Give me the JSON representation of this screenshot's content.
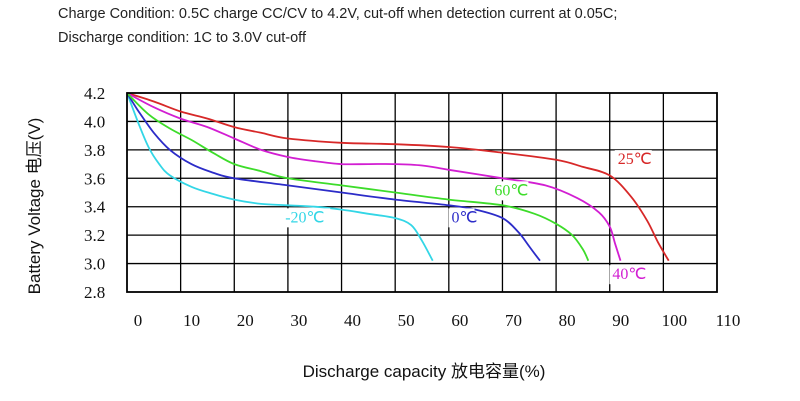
{
  "header": {
    "line1": "Charge Condition: 0.5C charge CC/CV to 4.2V, cut-off when detection current at 0.05C;",
    "line2": "Discharge condition: 1C to 3.0V cut-off"
  },
  "chart_data": {
    "type": "line",
    "title": "",
    "xlabel": "Discharge capacity 放电容量(%)",
    "ylabel": "Battery Voltage 电压(V)",
    "xlim": [
      0,
      110
    ],
    "ylim": [
      2.8,
      4.2
    ],
    "x_ticks": [
      0,
      10,
      20,
      30,
      40,
      50,
      60,
      70,
      80,
      90,
      100,
      110
    ],
    "y_ticks": [
      2.8,
      3.0,
      3.2,
      3.4,
      3.6,
      3.8,
      4.0,
      4.2
    ],
    "y_tick_labels": [
      "2.8",
      "3.0",
      "3.2",
      "3.4",
      "3.6",
      "3.8",
      "4.0",
      "4.2"
    ],
    "x_tick_labels": [
      "0",
      "10",
      "20",
      "30",
      "40",
      "50",
      "60",
      "70",
      "80",
      "90",
      "100",
      "110"
    ],
    "grid": true,
    "series": [
      {
        "name": "-20℃",
        "color": "#33d6e6",
        "points": [
          [
            0,
            4.2
          ],
          [
            2,
            4.0
          ],
          [
            4,
            3.82
          ],
          [
            6,
            3.7
          ],
          [
            8,
            3.62
          ],
          [
            12,
            3.54
          ],
          [
            16,
            3.49
          ],
          [
            20,
            3.45
          ],
          [
            25,
            3.42
          ],
          [
            30,
            3.41
          ],
          [
            35,
            3.4
          ],
          [
            40,
            3.38
          ],
          [
            45,
            3.35
          ],
          [
            50,
            3.32
          ],
          [
            53,
            3.27
          ],
          [
            55,
            3.16
          ],
          [
            57,
            3.02
          ]
        ]
      },
      {
        "name": "0℃",
        "color": "#2c2cc8",
        "points": [
          [
            0,
            4.2
          ],
          [
            2,
            4.08
          ],
          [
            5,
            3.92
          ],
          [
            8,
            3.8
          ],
          [
            12,
            3.7
          ],
          [
            16,
            3.64
          ],
          [
            20,
            3.6
          ],
          [
            30,
            3.55
          ],
          [
            40,
            3.5
          ],
          [
            50,
            3.45
          ],
          [
            60,
            3.41
          ],
          [
            65,
            3.38
          ],
          [
            70,
            3.32
          ],
          [
            73,
            3.22
          ],
          [
            75,
            3.12
          ],
          [
            77,
            3.02
          ]
        ]
      },
      {
        "name": "25℃",
        "color": "#d72828",
        "points": [
          [
            0,
            4.2
          ],
          [
            5,
            4.14
          ],
          [
            10,
            4.07
          ],
          [
            15,
            4.02
          ],
          [
            20,
            3.96
          ],
          [
            25,
            3.92
          ],
          [
            30,
            3.88
          ],
          [
            40,
            3.85
          ],
          [
            50,
            3.84
          ],
          [
            60,
            3.82
          ],
          [
            70,
            3.78
          ],
          [
            80,
            3.73
          ],
          [
            85,
            3.68
          ],
          [
            90,
            3.62
          ],
          [
            94,
            3.47
          ],
          [
            97,
            3.3
          ],
          [
            99,
            3.15
          ],
          [
            101,
            3.02
          ]
        ]
      },
      {
        "name": "40℃",
        "color": "#d21ed2",
        "points": [
          [
            0,
            4.2
          ],
          [
            5,
            4.1
          ],
          [
            10,
            4.02
          ],
          [
            15,
            3.96
          ],
          [
            20,
            3.88
          ],
          [
            25,
            3.8
          ],
          [
            30,
            3.75
          ],
          [
            35,
            3.72
          ],
          [
            40,
            3.7
          ],
          [
            45,
            3.7
          ],
          [
            50,
            3.7
          ],
          [
            55,
            3.69
          ],
          [
            60,
            3.66
          ],
          [
            70,
            3.6
          ],
          [
            78,
            3.55
          ],
          [
            84,
            3.46
          ],
          [
            88,
            3.36
          ],
          [
            90,
            3.26
          ],
          [
            91,
            3.14
          ],
          [
            92,
            3.02
          ]
        ]
      },
      {
        "name": "60℃",
        "color": "#3ddc2a",
        "points": [
          [
            0,
            4.2
          ],
          [
            4,
            4.05
          ],
          [
            8,
            3.95
          ],
          [
            12,
            3.87
          ],
          [
            16,
            3.78
          ],
          [
            20,
            3.7
          ],
          [
            25,
            3.65
          ],
          [
            30,
            3.6
          ],
          [
            40,
            3.55
          ],
          [
            50,
            3.5
          ],
          [
            60,
            3.45
          ],
          [
            70,
            3.41
          ],
          [
            76,
            3.35
          ],
          [
            80,
            3.28
          ],
          [
            83,
            3.2
          ],
          [
            85,
            3.1
          ],
          [
            86,
            3.02
          ]
        ]
      }
    ],
    "annotations": [
      {
        "text": "25℃",
        "x": 91.5,
        "y": 3.7,
        "series": "25℃"
      },
      {
        "text": "60℃",
        "x": 68.5,
        "y": 3.48,
        "series": "60℃"
      },
      {
        "text": "0℃",
        "x": 60.5,
        "y": 3.29,
        "series": "0℃"
      },
      {
        "text": "-20℃",
        "x": 29.5,
        "y": 3.29,
        "series": "-20℃"
      },
      {
        "text": "40℃",
        "x": 90.5,
        "y": 2.89,
        "series": "40℃"
      }
    ]
  }
}
